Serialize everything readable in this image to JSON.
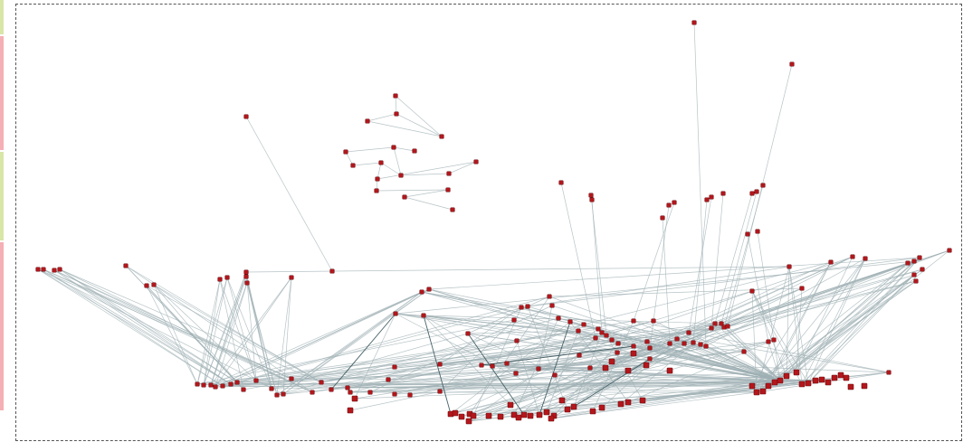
{
  "colors": {
    "node_fill": "#b3171c",
    "node_stroke": "#6e0d10",
    "edge": "#9fb0b4",
    "edge_dark": "#3f5a60",
    "frame": "#555555",
    "strip": [
      "#d8e6a8",
      "#f4b0b4",
      "#d8e6a8",
      "#f4b0b4"
    ]
  },
  "graph": {
    "type": "network",
    "node_shape": "square"
  }
}
